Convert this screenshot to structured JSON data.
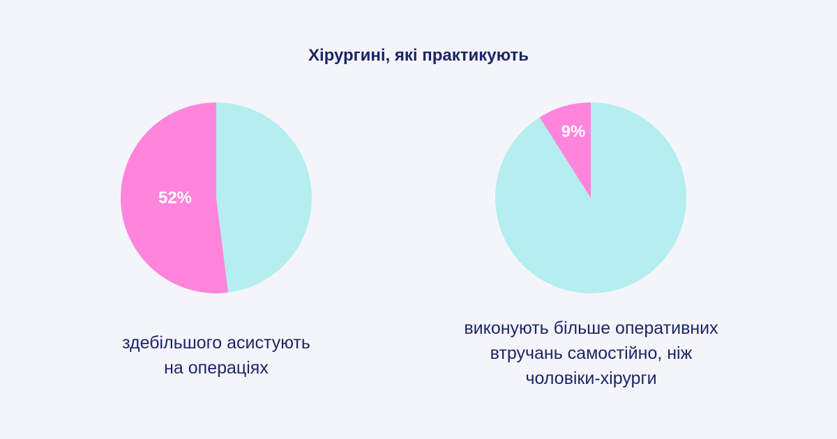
{
  "title": "Хірургині, які практикують",
  "colors": {
    "background": "#f4f5fa",
    "highlight": "#ff85dc",
    "rest": "#b4eeee",
    "text": "#1d2566"
  },
  "chart_data": [
    {
      "type": "pie",
      "title": "",
      "slices": [
        {
          "label": "52%",
          "value": 52,
          "color": "#ff85dc"
        },
        {
          "label": "",
          "value": 48,
          "color": "#b4eeee"
        }
      ],
      "caption_lines": [
        "здебільшого асистують",
        "на операціях"
      ]
    },
    {
      "type": "pie",
      "title": "",
      "slices": [
        {
          "label": "9%",
          "value": 9,
          "color": "#ff85dc"
        },
        {
          "label": "",
          "value": 91,
          "color": "#b4eeee"
        }
      ],
      "caption_lines": [
        "виконують більше оперативних",
        "втручань самостійно, ніж",
        "чоловіки-хірурги"
      ]
    }
  ]
}
